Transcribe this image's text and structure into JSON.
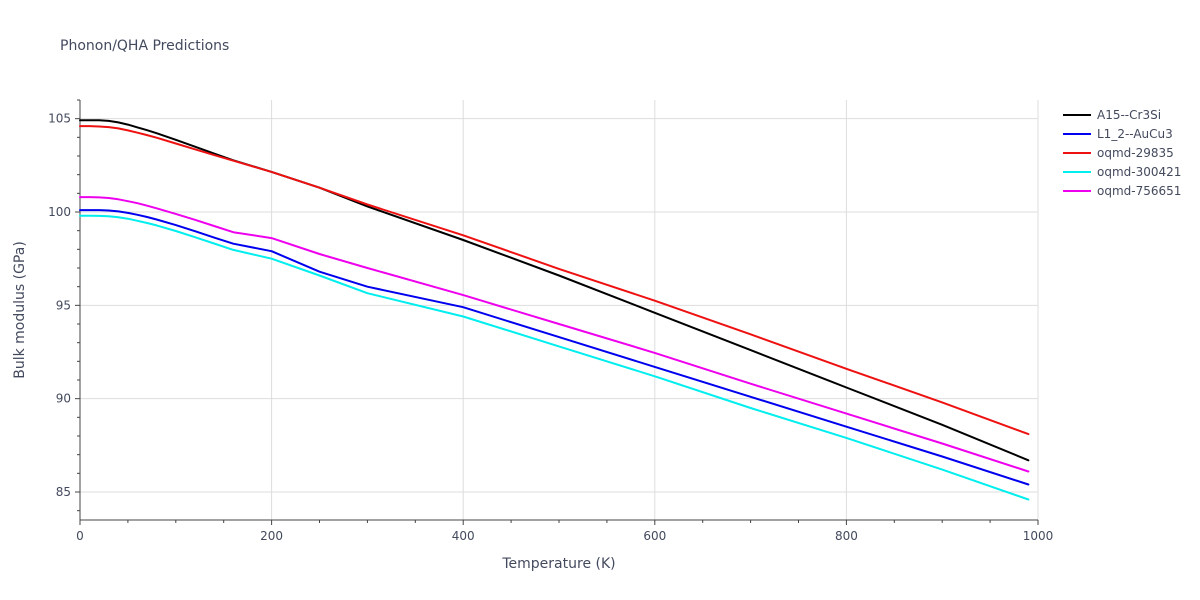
{
  "chart_data": {
    "type": "line",
    "title": "Phonon/QHA Predictions",
    "xlabel": "Temperature (K)",
    "ylabel": "Bulk modulus (GPa)",
    "xlim": [
      0,
      1000
    ],
    "ylim": [
      83.5,
      106.0
    ],
    "xticks": [
      0,
      200,
      400,
      600,
      800,
      1000
    ],
    "yticks": [
      85,
      90,
      95,
      100,
      105
    ],
    "grid": true,
    "legend_position": "top-right, outside plot",
    "x": [
      0,
      10,
      20,
      30,
      40,
      50,
      60,
      70,
      80,
      100,
      120,
      140,
      160,
      200,
      250,
      300,
      400,
      500,
      600,
      700,
      800,
      900,
      990
    ],
    "series": [
      {
        "name": "A15--Cr3Si",
        "color": "#000000",
        "values": [
          104.92,
          104.92,
          104.91,
          104.88,
          104.8,
          104.68,
          104.53,
          104.38,
          104.22,
          103.87,
          103.5,
          103.13,
          102.77,
          102.15,
          101.3,
          100.3,
          98.5,
          96.6,
          94.6,
          92.6,
          90.6,
          88.6,
          86.7
        ]
      },
      {
        "name": "L1_2--AuCu3",
        "color": "#0000ee",
        "values": [
          100.1,
          100.1,
          100.1,
          100.08,
          100.03,
          99.95,
          99.85,
          99.73,
          99.6,
          99.3,
          98.97,
          98.63,
          98.3,
          97.9,
          96.8,
          96.0,
          94.9,
          93.3,
          91.7,
          90.1,
          88.5,
          86.9,
          85.4
        ]
      },
      {
        "name": "oqmd-29835",
        "color": "#ee1111",
        "values": [
          104.6,
          104.6,
          104.58,
          104.55,
          104.48,
          104.37,
          104.25,
          104.12,
          103.98,
          103.67,
          103.36,
          103.05,
          102.75,
          102.15,
          101.3,
          100.4,
          98.75,
          96.95,
          95.25,
          93.45,
          91.6,
          89.8,
          88.1
        ]
      },
      {
        "name": "oqmd-300421",
        "color": "#00eeee",
        "values": [
          99.8,
          99.8,
          99.79,
          99.77,
          99.72,
          99.64,
          99.53,
          99.41,
          99.28,
          98.98,
          98.65,
          98.31,
          97.97,
          97.5,
          96.6,
          95.65,
          94.4,
          92.8,
          91.2,
          89.5,
          87.9,
          86.2,
          84.6
        ]
      },
      {
        "name": "oqmd-756651",
        "color": "#ee00ee",
        "values": [
          100.8,
          100.8,
          100.78,
          100.75,
          100.68,
          100.58,
          100.47,
          100.34,
          100.2,
          99.9,
          99.58,
          99.25,
          98.92,
          98.6,
          97.75,
          97.0,
          95.55,
          94.0,
          92.45,
          90.8,
          89.2,
          87.6,
          86.1
        ]
      }
    ]
  }
}
